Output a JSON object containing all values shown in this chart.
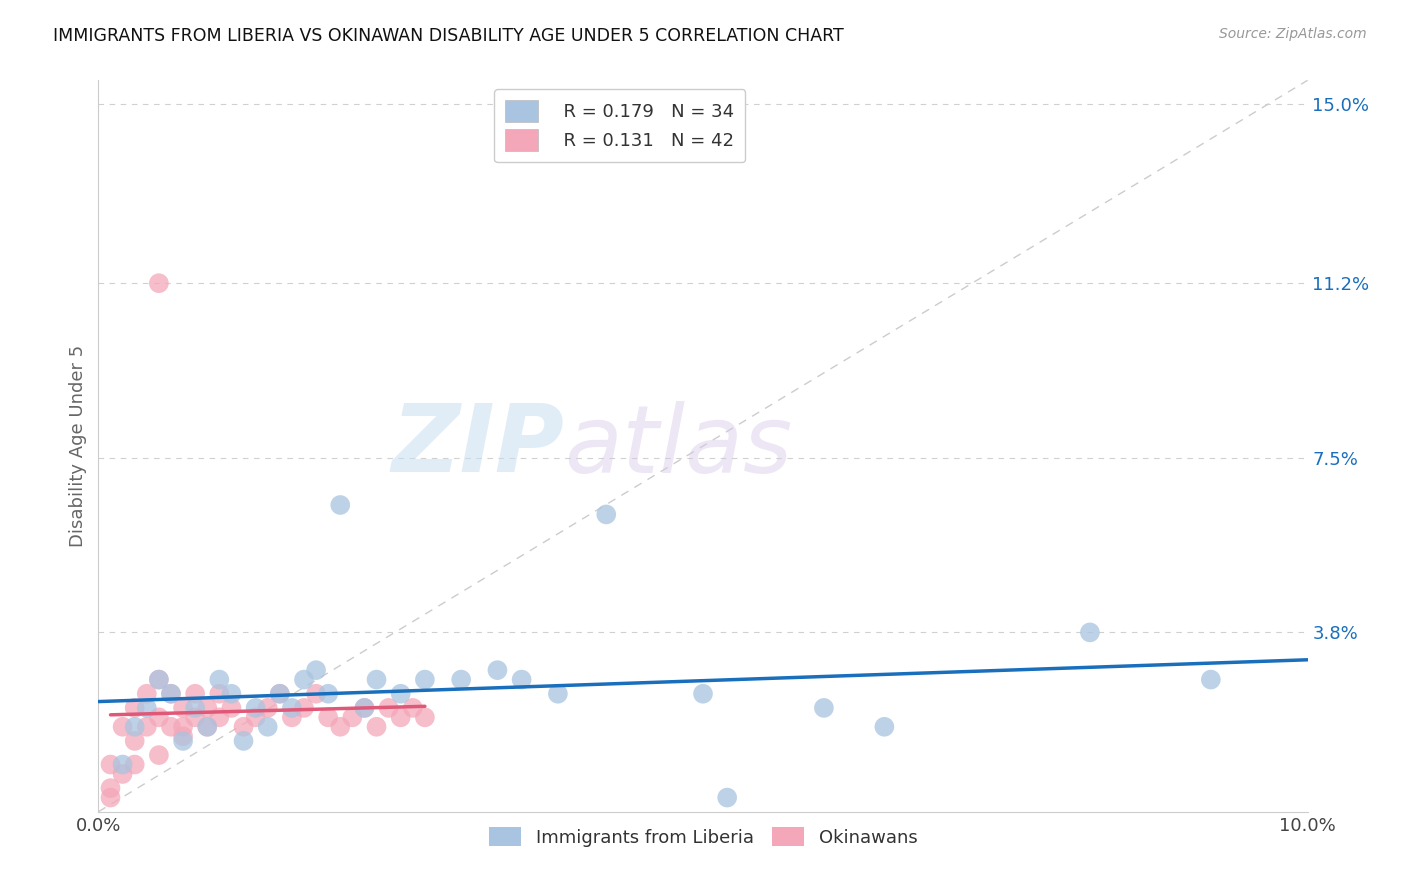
{
  "title": "IMMIGRANTS FROM LIBERIA VS OKINAWAN DISABILITY AGE UNDER 5 CORRELATION CHART",
  "source": "Source: ZipAtlas.com",
  "ylabel": "Disability Age Under 5",
  "xlim": [
    0.0,
    0.1
  ],
  "ylim": [
    0.0,
    0.155
  ],
  "ytick_vals": [
    0.0,
    0.038,
    0.075,
    0.112,
    0.15
  ],
  "ytick_labels": [
    "",
    "3.8%",
    "7.5%",
    "11.2%",
    "15.0%"
  ],
  "legend_liberia_r": "0.179",
  "legend_liberia_n": "34",
  "legend_okinawa_r": "0.131",
  "legend_okinawa_n": "42",
  "liberia_color": "#a8c4e0",
  "okinawa_color": "#f4a7b9",
  "liberia_line_color": "#1a6fbd",
  "okinawa_line_color": "#e05878",
  "background_color": "#ffffff",
  "grid_color": "#d0d0d0",
  "watermark_zip": "ZIP",
  "watermark_atlas": "atlas",
  "liberia_x": [
    0.002,
    0.003,
    0.004,
    0.005,
    0.006,
    0.007,
    0.008,
    0.009,
    0.01,
    0.011,
    0.012,
    0.013,
    0.014,
    0.015,
    0.016,
    0.017,
    0.018,
    0.019,
    0.02,
    0.022,
    0.023,
    0.025,
    0.027,
    0.03,
    0.033,
    0.035,
    0.038,
    0.042,
    0.05,
    0.052,
    0.06,
    0.065,
    0.082,
    0.092
  ],
  "liberia_y": [
    0.01,
    0.018,
    0.022,
    0.028,
    0.025,
    0.015,
    0.022,
    0.018,
    0.028,
    0.025,
    0.015,
    0.022,
    0.018,
    0.025,
    0.022,
    0.028,
    0.03,
    0.025,
    0.065,
    0.022,
    0.028,
    0.025,
    0.028,
    0.028,
    0.03,
    0.028,
    0.025,
    0.063,
    0.025,
    0.003,
    0.022,
    0.018,
    0.038,
    0.028
  ],
  "okinawa_x": [
    0.001,
    0.001,
    0.001,
    0.002,
    0.002,
    0.003,
    0.003,
    0.003,
    0.004,
    0.004,
    0.005,
    0.005,
    0.005,
    0.006,
    0.006,
    0.007,
    0.007,
    0.007,
    0.008,
    0.008,
    0.009,
    0.009,
    0.01,
    0.01,
    0.011,
    0.012,
    0.013,
    0.014,
    0.015,
    0.016,
    0.017,
    0.018,
    0.019,
    0.02,
    0.021,
    0.022,
    0.023,
    0.024,
    0.025,
    0.026,
    0.027,
    0.005
  ],
  "okinawa_y": [
    0.01,
    0.005,
    0.003,
    0.018,
    0.008,
    0.022,
    0.015,
    0.01,
    0.025,
    0.018,
    0.028,
    0.02,
    0.012,
    0.025,
    0.018,
    0.022,
    0.016,
    0.018,
    0.025,
    0.02,
    0.022,
    0.018,
    0.025,
    0.02,
    0.022,
    0.018,
    0.02,
    0.022,
    0.025,
    0.02,
    0.022,
    0.025,
    0.02,
    0.018,
    0.02,
    0.022,
    0.018,
    0.022,
    0.02,
    0.022,
    0.02,
    0.112
  ]
}
